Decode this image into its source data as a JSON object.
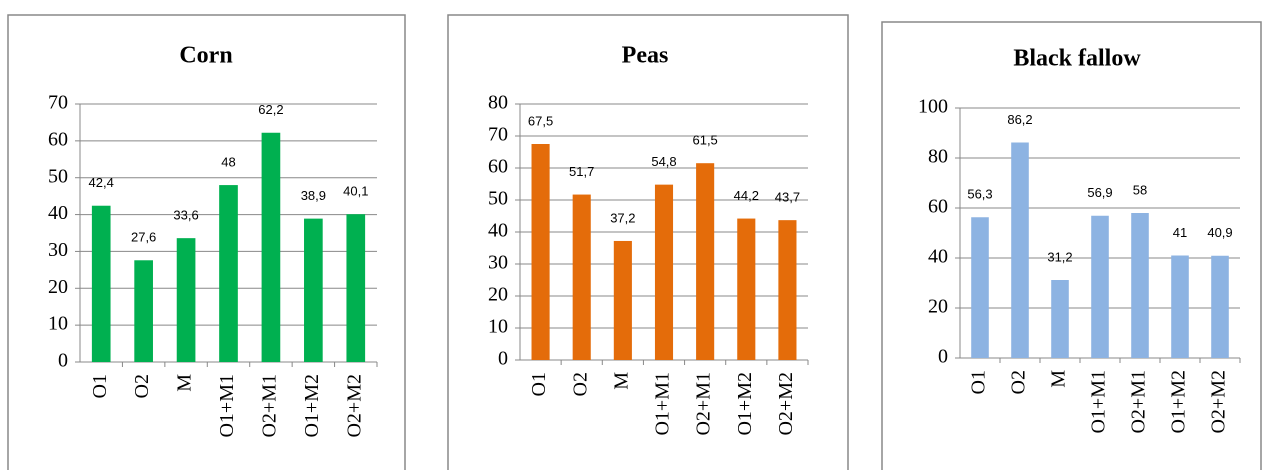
{
  "chart_data": [
    {
      "type": "bar",
      "title": "Corn",
      "categories": [
        "O1",
        "O2",
        "M",
        "O1+M1",
        "O2+M1",
        "O1+M2",
        "O2+M2"
      ],
      "values": [
        42.4,
        27.6,
        33.6,
        48,
        62.2,
        38.9,
        40.1
      ],
      "value_labels": [
        "42,4",
        "27,6",
        "33,6",
        "48",
        "62,2",
        "38,9",
        "40,1"
      ],
      "color": "#00b050",
      "ylim": [
        0,
        70
      ],
      "yticks": [
        0,
        10,
        20,
        30,
        40,
        50,
        60,
        70
      ],
      "grid": true
    },
    {
      "type": "bar",
      "title": "Peas",
      "categories": [
        "O1",
        "O2",
        "M",
        "O1+M1",
        "O2+M1",
        "O1+M2",
        "O2+M2"
      ],
      "values": [
        67.5,
        51.7,
        37.2,
        54.8,
        61.5,
        44.2,
        43.7
      ],
      "value_labels": [
        "67,5",
        "51,7",
        "37,2",
        "54,8",
        "61,5",
        "44,2",
        "43,7"
      ],
      "color": "#e46c0a",
      "ylim": [
        0,
        80
      ],
      "yticks": [
        0,
        10,
        20,
        30,
        40,
        50,
        60,
        70,
        80
      ],
      "grid": true
    },
    {
      "type": "bar",
      "title": "Black fallow",
      "categories": [
        "O1",
        "O2",
        "M",
        "O1+M1",
        "O2+M1",
        "O1+M2",
        "O2+M2"
      ],
      "values": [
        56.3,
        86.2,
        31.2,
        56.9,
        58,
        41,
        40.9
      ],
      "value_labels": [
        "56,3",
        "86,2",
        "31,2",
        "56,9",
        "58",
        "41",
        "40,9"
      ],
      "color": "#8db3e2",
      "ylim": [
        0,
        100
      ],
      "yticks": [
        0,
        20,
        40,
        60,
        80,
        100
      ],
      "grid": true
    }
  ]
}
